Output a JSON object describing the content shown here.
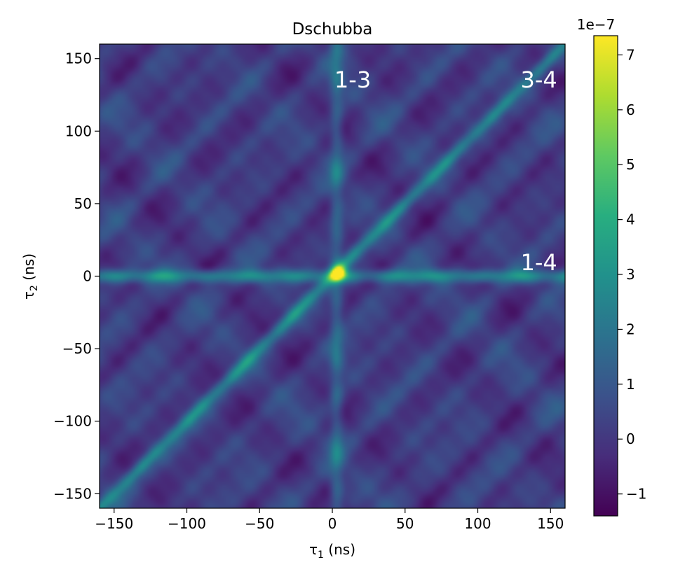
{
  "chart_data": {
    "type": "heatmap",
    "title": "Dschubba",
    "xlabel": {
      "symbol": "τ",
      "sub": "1",
      "unit": " (ns)"
    },
    "ylabel": {
      "symbol": "τ",
      "sub": "2",
      "unit": " (ns)"
    },
    "xlim": [
      -160,
      160
    ],
    "ylim": [
      -160,
      160
    ],
    "xticks": [
      -150,
      -100,
      -50,
      0,
      50,
      100,
      150
    ],
    "yticks": [
      -150,
      -100,
      -50,
      0,
      50,
      100,
      150
    ],
    "xtick_labels": [
      "−150",
      "−100",
      "−50",
      "0",
      "50",
      "100",
      "150"
    ],
    "ytick_labels": [
      "−150",
      "−100",
      "−50",
      "0",
      "50",
      "100",
      "150"
    ],
    "colormap": "viridis",
    "colorbar": {
      "range": [
        -1.4,
        7.35
      ],
      "ticks": [
        -1,
        0,
        1,
        2,
        3,
        4,
        5,
        6,
        7
      ],
      "tick_labels": [
        "−1",
        "0",
        "1",
        "2",
        "3",
        "4",
        "5",
        "6",
        "7"
      ],
      "offset_label": "1e−7"
    },
    "features": [
      {
        "kind": "horizontal_line",
        "at": 0,
        "level": 3.0
      },
      {
        "kind": "vertical_line",
        "at": 3,
        "level": 1.8
      },
      {
        "kind": "diagonal_line",
        "slope": 1,
        "level": 2.8
      },
      {
        "kind": "peak",
        "x": 4,
        "y": 2,
        "level": 7.3
      }
    ],
    "background_level": 0.2,
    "annotations": [
      {
        "text": "1-3",
        "x": 14,
        "y": 130
      },
      {
        "text": "3-4",
        "x": 142,
        "y": 130
      },
      {
        "text": "1-4",
        "x": 142,
        "y": 4
      }
    ]
  }
}
